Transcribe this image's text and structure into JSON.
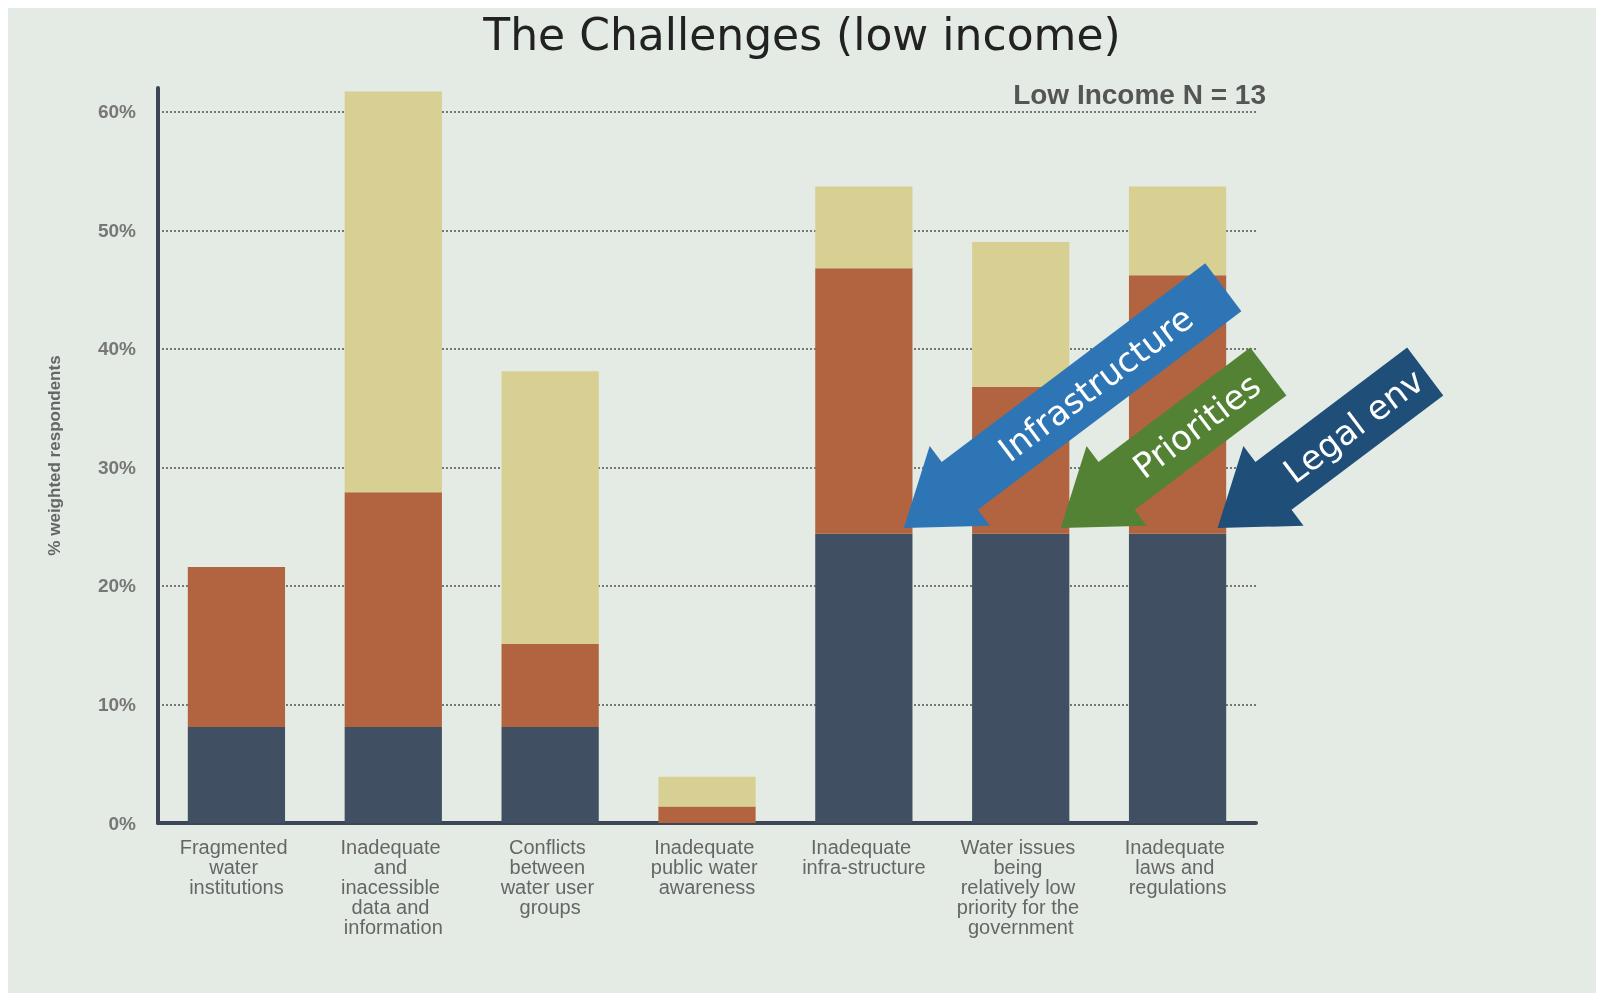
{
  "chart_data": {
    "type": "bar",
    "title": "The Challenges (low income)",
    "ylabel": "% weighted respondents",
    "categories": [
      "Fragmented water institutions",
      "Inadequate and inacessible data and information",
      "Conflicts between water user groups",
      "Inadequate public water awareness",
      "Inadequate infra-structure",
      "Water issues being relatively low priority for the government",
      "Inadequate laws and regulations"
    ],
    "stacked": true,
    "series": [
      {
        "color": "#414f62",
        "values": [
          8.1,
          8.1,
          8.1,
          0,
          24.4,
          24.4,
          24.4
        ]
      },
      {
        "color": "#b1643f",
        "values": [
          13.5,
          19.8,
          7.0,
          1.4,
          22.4,
          12.4,
          21.8
        ]
      },
      {
        "color": "#d8cf92",
        "values": [
          0,
          33.8,
          23.0,
          2.5,
          6.9,
          12.2,
          7.5
        ]
      }
    ],
    "ylim": [
      0,
      62
    ],
    "yticks": [
      {
        "value": 0,
        "label": "0%"
      },
      {
        "value": 10,
        "label": "10%"
      },
      {
        "value": 20,
        "label": "20%"
      },
      {
        "value": 30,
        "label": "30%"
      },
      {
        "value": 40,
        "label": "40%"
      },
      {
        "value": 50,
        "label": "50%"
      },
      {
        "value": 60,
        "label": "60%"
      }
    ],
    "grid": "y",
    "annotations": [
      "Low Income N = 13",
      "Infrastructure",
      "Priorities",
      "Legal env"
    ]
  }
}
